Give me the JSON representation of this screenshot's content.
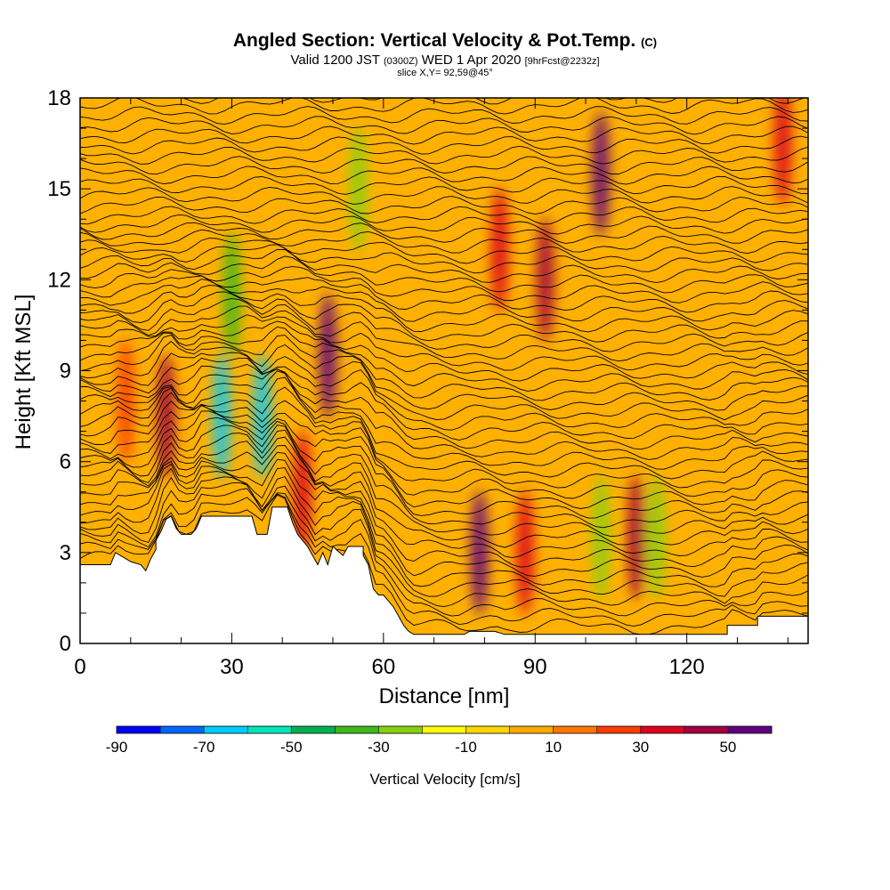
{
  "header": {
    "title_main": "Angled Section: Vertical Velocity & Pot.Temp.",
    "title_unit": "(C)",
    "valid_prefix": "Valid 1200 JST",
    "valid_utc": "(0300Z)",
    "valid_date": "WED 1 Apr 2020",
    "forecast": "[9hrFcst@2232z]",
    "slice": "slice X,Y= 92,59@45°"
  },
  "chart_data": {
    "type": "heatmap",
    "xlabel": "Distance [nm]",
    "ylabel": "Height [Kft MSL]",
    "xlim": [
      0,
      144
    ],
    "ylim": [
      0,
      18
    ],
    "x_ticks": [
      0,
      30,
      60,
      90,
      120
    ],
    "y_ticks": [
      0,
      3,
      6,
      9,
      12,
      15,
      18
    ],
    "colorbar": {
      "label": "Vertical Velocity [cm/s]",
      "min": -90,
      "max": 60,
      "step": 10,
      "tick_labels": [
        "-90",
        "-70",
        "-50",
        "-30",
        "-10",
        "10",
        "30",
        "50"
      ],
      "colors": [
        "#0000ff",
        "#0066ff",
        "#00ccff",
        "#00e6b8",
        "#00b050",
        "#3cb818",
        "#88d010",
        "#ffff00",
        "#ffd700",
        "#ffaa00",
        "#ff7700",
        "#ff3c00",
        "#dd0020",
        "#a00040",
        "#600080"
      ]
    },
    "velocity_features": [
      {
        "x": 9,
        "y": 8.0,
        "value": 20
      },
      {
        "x": 17,
        "y": 7.5,
        "value": 40
      },
      {
        "x": 28,
        "y": 7.5,
        "value": -70
      },
      {
        "x": 30,
        "y": 11.5,
        "value": -40
      },
      {
        "x": 36,
        "y": 7.5,
        "value": -70
      },
      {
        "x": 44,
        "y": 5.0,
        "value": 30
      },
      {
        "x": 49,
        "y": 9.5,
        "value": 60
      },
      {
        "x": 55,
        "y": 15.0,
        "value": -30
      },
      {
        "x": 79,
        "y": 3.0,
        "value": 50
      },
      {
        "x": 83,
        "y": 13.0,
        "value": 30
      },
      {
        "x": 88,
        "y": 3.0,
        "value": 30
      },
      {
        "x": 92,
        "y": 12.0,
        "value": 40
      },
      {
        "x": 103,
        "y": 15.5,
        "value": 60
      },
      {
        "x": 103,
        "y": 3.5,
        "value": -30
      },
      {
        "x": 110,
        "y": 3.5,
        "value": 40
      },
      {
        "x": 114,
        "y": 3.5,
        "value": -30
      },
      {
        "x": 139,
        "y": 16.5,
        "value": 30
      }
    ],
    "terrain": [
      {
        "x": 0,
        "h": 2.6
      },
      {
        "x": 6,
        "h": 2.6
      },
      {
        "x": 7,
        "h": 3.0
      },
      {
        "x": 10,
        "h": 2.7
      },
      {
        "x": 12,
        "h": 2.6
      },
      {
        "x": 13,
        "h": 2.4
      },
      {
        "x": 14,
        "h": 2.8
      },
      {
        "x": 15,
        "h": 3.1
      },
      {
        "x": 15,
        "h": 3.4
      },
      {
        "x": 16,
        "h": 3.7
      },
      {
        "x": 17,
        "h": 4.1
      },
      {
        "x": 18,
        "h": 4.2
      },
      {
        "x": 19,
        "h": 3.8
      },
      {
        "x": 20,
        "h": 3.6
      },
      {
        "x": 22,
        "h": 3.6
      },
      {
        "x": 23,
        "h": 3.8
      },
      {
        "x": 24,
        "h": 4.2
      },
      {
        "x": 34,
        "h": 4.2
      },
      {
        "x": 35,
        "h": 3.6
      },
      {
        "x": 37,
        "h": 3.6
      },
      {
        "x": 38,
        "h": 4.5
      },
      {
        "x": 41,
        "h": 4.5
      },
      {
        "x": 42,
        "h": 4.0
      },
      {
        "x": 43,
        "h": 3.6
      },
      {
        "x": 45,
        "h": 3.2
      },
      {
        "x": 46,
        "h": 2.9
      },
      {
        "x": 47,
        "h": 2.6
      },
      {
        "x": 48,
        "h": 3.0
      },
      {
        "x": 49,
        "h": 2.6
      },
      {
        "x": 50,
        "h": 3.2
      },
      {
        "x": 52,
        "h": 2.9
      },
      {
        "x": 53,
        "h": 3.2
      },
      {
        "x": 56,
        "h": 3.2
      },
      {
        "x": 56,
        "h": 2.9
      },
      {
        "x": 57,
        "h": 2.6
      },
      {
        "x": 58,
        "h": 1.8
      },
      {
        "x": 59,
        "h": 1.6
      },
      {
        "x": 60,
        "h": 1.6
      },
      {
        "x": 62,
        "h": 1.2
      },
      {
        "x": 63,
        "h": 0.9
      },
      {
        "x": 64,
        "h": 0.6
      },
      {
        "x": 65,
        "h": 0.4
      },
      {
        "x": 66,
        "h": 0.3
      },
      {
        "x": 70,
        "h": 0.3
      },
      {
        "x": 76,
        "h": 0.3
      },
      {
        "x": 77,
        "h": 0.4
      },
      {
        "x": 82,
        "h": 0.4
      },
      {
        "x": 84,
        "h": 0.3
      },
      {
        "x": 128,
        "h": 0.3
      },
      {
        "x": 128,
        "h": 0.6
      },
      {
        "x": 134,
        "h": 0.6
      },
      {
        "x": 134,
        "h": 0.9
      },
      {
        "x": 144,
        "h": 0.9
      }
    ],
    "theta_lines": {
      "count": 56,
      "min": 18,
      "max": 75
    }
  }
}
